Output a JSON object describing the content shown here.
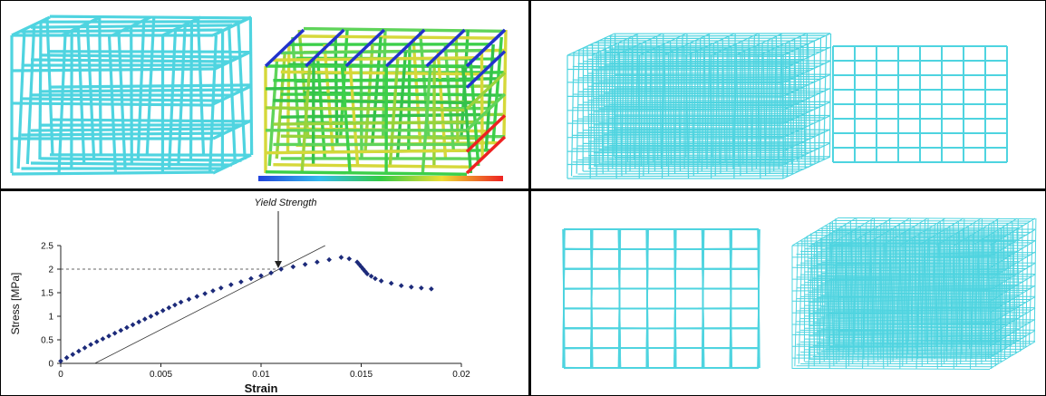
{
  "colors": {
    "lattice": "#4fd4e0",
    "lattice_dark": "#1aa7b7",
    "stress_low": "#2233cc",
    "stress_mid": "#38c94a",
    "stress_high": "#ee2222",
    "data_points": "#1c2a7a"
  },
  "panels": {
    "top_left": {
      "content": "lattice-cube and stress-contour-cube"
    },
    "top_right": {
      "content": "wireframe-cube-iso and wireframe-cube-front"
    },
    "bottom_right": {
      "content": "wireframe-cube-front and wireframe-cube-rotated"
    }
  },
  "legend_scale": {
    "labels": [
      "",
      "",
      "",
      "",
      "",
      "",
      "",
      "",
      ""
    ]
  },
  "chart_data": {
    "type": "scatter",
    "title": "",
    "xlabel": "Strain",
    "ylabel": "Stress [MPa]",
    "xlim": [
      0,
      0.02
    ],
    "ylim": [
      0,
      2.5
    ],
    "xticks": [
      "0",
      "0.005",
      "0.01",
      "0.015",
      "0.02"
    ],
    "yticks": [
      "0",
      "0.5",
      "1",
      "1.5",
      "2",
      "2.5"
    ],
    "annotation": "Yield Strength",
    "yield_point": {
      "x": 0.011,
      "y": 2.0
    },
    "offset_line": {
      "x0": 0.0017,
      "y0": 0,
      "x1": 0.0132,
      "y1": 2.5
    },
    "series": [
      {
        "x": [
          0.0,
          0.0003,
          0.0006,
          0.0009,
          0.0012,
          0.0015,
          0.0018,
          0.0021,
          0.0024,
          0.0027,
          0.003,
          0.0033,
          0.0036,
          0.0039,
          0.0042,
          0.0045,
          0.0048,
          0.0051,
          0.0054,
          0.0057,
          0.006,
          0.0064,
          0.0068,
          0.0072,
          0.0076,
          0.008,
          0.0085,
          0.009,
          0.0095,
          0.01,
          0.0105,
          0.011,
          0.0116,
          0.0122,
          0.0128,
          0.0134,
          0.014,
          0.0144,
          0.0148,
          0.0149,
          0.015,
          0.0151,
          0.0152,
          0.0153,
          0.0155,
          0.0157,
          0.016,
          0.0165,
          0.017,
          0.0175,
          0.018,
          0.0185
        ],
        "y": [
          0.05,
          0.12,
          0.19,
          0.26,
          0.33,
          0.4,
          0.46,
          0.52,
          0.58,
          0.64,
          0.7,
          0.76,
          0.82,
          0.88,
          0.94,
          1.0,
          1.06,
          1.12,
          1.18,
          1.24,
          1.3,
          1.36,
          1.42,
          1.48,
          1.54,
          1.6,
          1.67,
          1.73,
          1.8,
          1.86,
          1.92,
          2.0,
          2.05,
          2.1,
          2.15,
          2.2,
          2.25,
          2.22,
          2.15,
          2.1,
          2.05,
          2.0,
          1.95,
          1.9,
          1.85,
          1.8,
          1.75,
          1.7,
          1.65,
          1.62,
          1.6,
          1.58
        ]
      }
    ]
  }
}
